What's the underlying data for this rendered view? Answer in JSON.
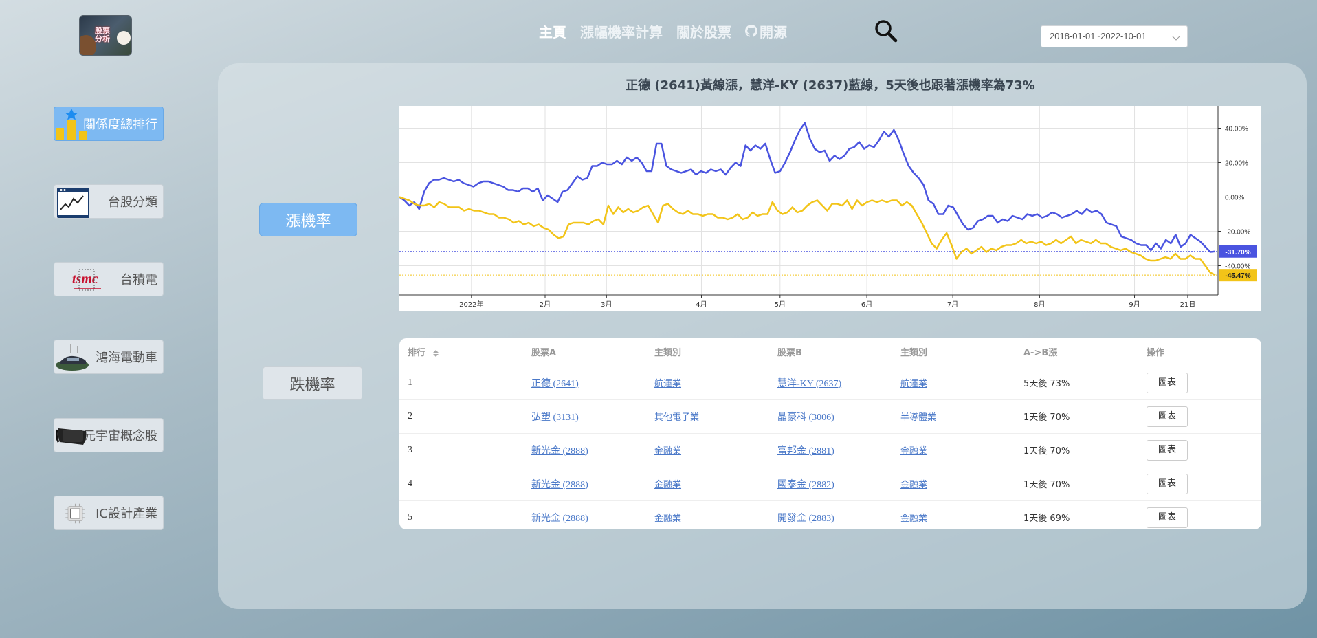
{
  "header": {
    "logo_text": "股票分析",
    "nav": [
      {
        "label": "主頁"
      },
      {
        "label": "漲幅機率計算"
      },
      {
        "label": "關於股票"
      },
      {
        "label": "開源"
      }
    ],
    "date_range": "2018-01-01~2022-10-01"
  },
  "sidebar": {
    "items": [
      {
        "label": "關係度總排行",
        "icon": "bar-chart-star-icon"
      },
      {
        "label": "台股分類",
        "icon": "stock-chart-window-icon"
      },
      {
        "label": "台積電",
        "icon": "tsmc-logo-icon"
      },
      {
        "label": "鴻海電動車",
        "icon": "electric-car-icon"
      },
      {
        "label": "元宇宙概念股",
        "icon": "vr-headset-icon"
      },
      {
        "label": "IC設計產業",
        "icon": "chip-icon"
      }
    ]
  },
  "main": {
    "rise_label": "漲機率",
    "fall_label": "跌機率",
    "chart_title": "正德 (2641)黃線漲，慧洋-KY (2637)藍線，5天後也跟著漲機率為73%"
  },
  "chart_data": {
    "type": "line",
    "title": "正德 (2641)黃線漲，慧洋-KY (2637)藍線，5天後也跟著漲機率為73%",
    "x_ticks": [
      "2022年",
      "2月",
      "3月",
      "4月",
      "5月",
      "6月",
      "7月",
      "8月",
      "9月",
      "21日"
    ],
    "y_ticks": [
      "40.00%",
      "20.00%",
      "0.00%",
      "-20.00%",
      "-40.00%"
    ],
    "ylim": [
      -57,
      53
    ],
    "grid": true,
    "series": [
      {
        "color": "#4a54e0",
        "last_label": "-31.70%",
        "values": [
          0,
          -2,
          -5,
          -3,
          -7,
          3,
          8,
          10,
          10,
          11,
          10,
          9,
          10,
          8,
          7,
          6,
          8,
          9,
          9,
          8,
          7,
          6,
          4,
          4,
          3,
          5,
          5,
          3,
          5,
          -2,
          1,
          -1,
          -3,
          3,
          4,
          8,
          12,
          10,
          11,
          18,
          18,
          20,
          19,
          19,
          21,
          19,
          23,
          21,
          23,
          20,
          15,
          15,
          31,
          31,
          18,
          16,
          15,
          14,
          15,
          16,
          13,
          15,
          14,
          16,
          15,
          16,
          13,
          17,
          20,
          18,
          30,
          27,
          30,
          28,
          31,
          22,
          14,
          15,
          20,
          26,
          33,
          39,
          43,
          34,
          28,
          26,
          27,
          21,
          24,
          22,
          24,
          28,
          29,
          32,
          28,
          30,
          29,
          33,
          38,
          35,
          39,
          33,
          25,
          18,
          14,
          11,
          7,
          -2,
          -4,
          -10,
          -10,
          -5,
          -6,
          -11,
          -16,
          -19,
          -18,
          -14,
          -13,
          -11,
          -11,
          -15,
          -13,
          -14,
          -11,
          -12,
          -13,
          -10,
          -11,
          -10,
          -12,
          -11,
          -9,
          -10,
          -12,
          -11,
          -10,
          -8,
          -10,
          -7,
          -9,
          -8,
          -10,
          -15,
          -16,
          -17,
          -23,
          -24,
          -25,
          -27,
          -28,
          -28,
          -31,
          -27,
          -30,
          -25,
          -27,
          -22,
          -29,
          -27,
          -22,
          -24,
          -26,
          -29,
          -32,
          -31.7
        ]
      },
      {
        "color": "#f2c418",
        "last_label": "-45.47%",
        "values": [
          0,
          -1,
          -2,
          -4,
          -5,
          -5,
          -4,
          -6,
          -3,
          -4,
          -6,
          -6,
          -6,
          -8,
          -7,
          -8,
          -8,
          -9,
          -10,
          -10,
          -12,
          -12,
          -13,
          -15,
          -14,
          -16,
          -15,
          -17,
          -16,
          -18,
          -19,
          -22,
          -24,
          -23,
          -16,
          -15,
          -15,
          -15,
          -16,
          -14,
          -13,
          -16,
          -5,
          -10,
          -6,
          -9,
          -7,
          -9,
          -8,
          -6,
          -5,
          -10,
          -15,
          -5,
          -4,
          -7,
          -9,
          -10,
          -8,
          -10,
          -10,
          -11,
          -10,
          -10,
          -12,
          -12,
          -13,
          -12,
          -10,
          -13,
          -12,
          -9,
          -11,
          -10,
          -10,
          -3,
          -8,
          -10,
          -9,
          -6,
          -9,
          -8,
          -5,
          -3,
          -2,
          -5,
          -8,
          -4,
          -4,
          -5,
          -2,
          -7,
          -2,
          -5,
          -3,
          -2,
          -3,
          -2,
          -3,
          -2,
          -2,
          -5,
          -3,
          -5,
          -10,
          -15,
          -21,
          -27,
          -30,
          -25,
          -21,
          -28,
          -36,
          -32,
          -30,
          -33,
          -31,
          -29,
          -32,
          -30,
          -31,
          -29,
          -28,
          -28,
          -27,
          -25,
          -27,
          -26,
          -27,
          -26,
          -28,
          -27,
          -25,
          -27,
          -25,
          -23,
          -27,
          -25,
          -26,
          -27,
          -25,
          -27,
          -27,
          -29,
          -30,
          -31,
          -30,
          -32,
          -33,
          -34,
          -36,
          -37,
          -37,
          -36,
          -35,
          -36,
          -33,
          -36,
          -36,
          -34,
          -36,
          -36,
          -40,
          -44,
          -45.47
        ]
      }
    ]
  },
  "table": {
    "headers": [
      "排行",
      "股票A",
      "主類別",
      "股票B",
      "主類別",
      "A->B漲",
      "操作"
    ],
    "rows": [
      {
        "rank": "1",
        "stock_a": "正德 (2641)",
        "cat_a": "航運業",
        "stock_b": "慧洋-KY (2637)",
        "cat_b": "航運業",
        "prob": "5天後 73%",
        "action": "圖表"
      },
      {
        "rank": "2",
        "stock_a": "弘塑 (3131)",
        "cat_a": "其他電子業",
        "stock_b": "晶豪科 (3006)",
        "cat_b": "半導體業",
        "prob": "1天後 70%",
        "action": "圖表"
      },
      {
        "rank": "3",
        "stock_a": "新光金 (2888)",
        "cat_a": "金融業",
        "stock_b": "富邦金 (2881)",
        "cat_b": "金融業",
        "prob": "1天後 70%",
        "action": "圖表"
      },
      {
        "rank": "4",
        "stock_a": "新光金 (2888)",
        "cat_a": "金融業",
        "stock_b": "國泰金 (2882)",
        "cat_b": "金融業",
        "prob": "1天後 70%",
        "action": "圖表"
      },
      {
        "rank": "5",
        "stock_a": "新光金 (2888)",
        "cat_a": "金融業",
        "stock_b": "開發金 (2883)",
        "cat_b": "金融業",
        "prob": "1天後 69%",
        "action": "圖表"
      }
    ]
  }
}
